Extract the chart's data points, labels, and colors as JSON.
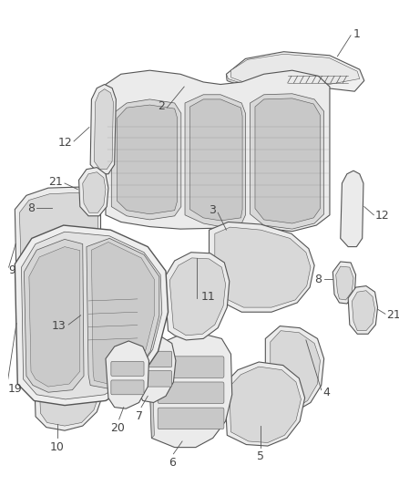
{
  "background_color": "#ffffff",
  "line_color": "#555555",
  "label_color": "#444444",
  "fig_width": 4.38,
  "fig_height": 5.33,
  "dpi": 100,
  "font_size_label": 9
}
